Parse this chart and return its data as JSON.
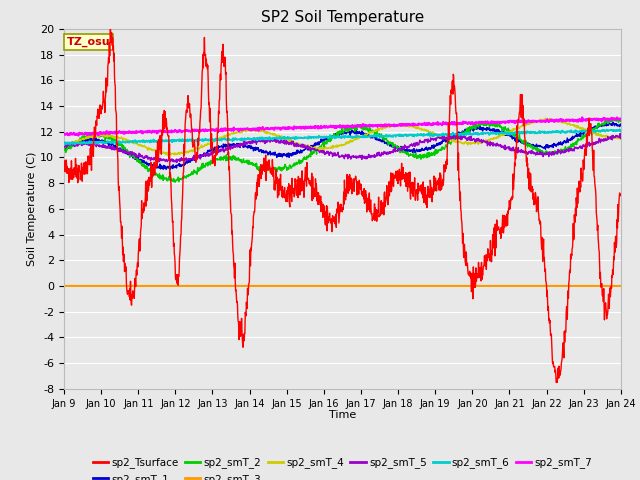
{
  "title": "SP2 Soil Temperature",
  "xlabel": "Time",
  "ylabel": "Soil Temperature (C)",
  "ylim": [
    -8,
    20
  ],
  "yticks": [
    -8,
    -6,
    -4,
    -2,
    0,
    2,
    4,
    6,
    8,
    10,
    12,
    14,
    16,
    18,
    20
  ],
  "tz_label": "TZ_osu",
  "x_ticks_labels": [
    "Jan 9",
    "Jan 10",
    "Jan 11",
    "Jan 12",
    "Jan 13",
    "Jan 14",
    "Jan 15",
    "Jan 16",
    "Jan 17",
    "Jan 18",
    "Jan 19",
    "Jan 20",
    "Jan 21",
    "Jan 22",
    "Jan 23",
    "Jan 24"
  ],
  "background_color": "#e8e8e8",
  "plot_bg_color": "#e8e8e8",
  "grid_color": "#ffffff",
  "series_colors": {
    "sp2_Tsurface": "#ff0000",
    "sp2_smT_1": "#0000cc",
    "sp2_smT_2": "#00cc00",
    "sp2_smT_3": "#ff9900",
    "sp2_smT_4": "#cccc00",
    "sp2_smT_5": "#9900cc",
    "sp2_smT_6": "#00cccc",
    "sp2_smT_7": "#ff00ff"
  }
}
